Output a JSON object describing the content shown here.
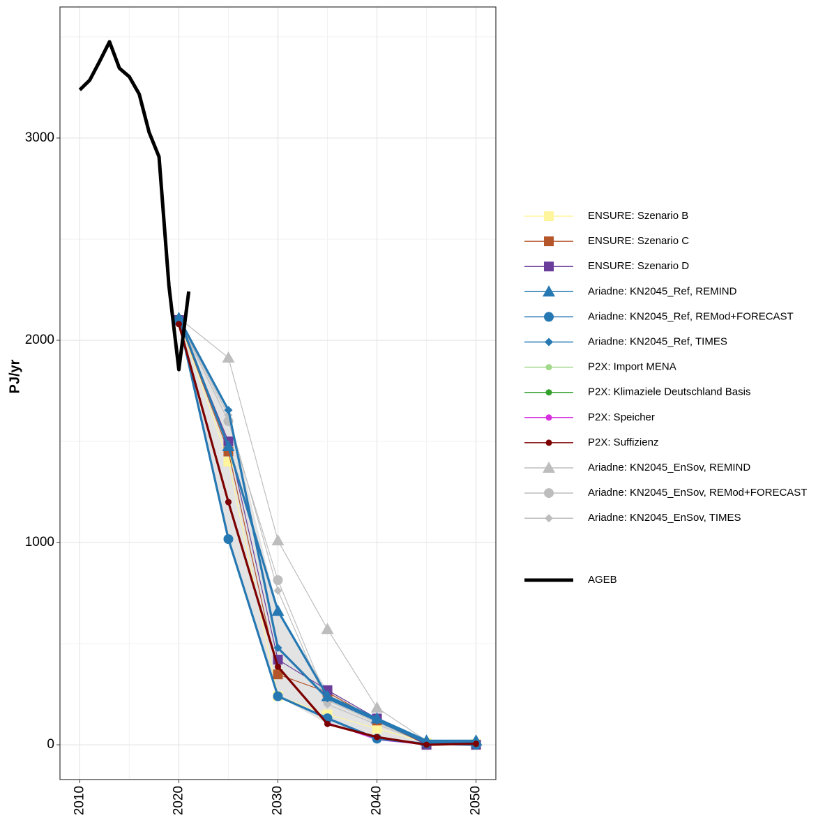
{
  "chart_data": {
    "type": "line",
    "y_label": "PJ/yr",
    "x": [
      2020,
      2025,
      2030,
      2035,
      2040,
      2045,
      2050
    ],
    "xlim": [
      2008,
      2052
    ],
    "xticks": [
      2010,
      2020,
      2030,
      2040,
      2050
    ],
    "x_minor_ticks": [
      2015,
      2025,
      2035,
      2045
    ],
    "ylim": [
      -172,
      3648
    ],
    "yticks": [
      0,
      1000,
      2000,
      3000
    ],
    "y_minor_ticks": [
      500,
      1500,
      2500,
      3500
    ],
    "grid": true,
    "series": [
      {
        "name": "ENSURE: Szenario B",
        "color": "#fff59d",
        "marker": "square",
        "values": [
          2100,
          1400,
          241,
          150,
          80,
          10,
          5
        ]
      },
      {
        "name": "ENSURE: Szenario C",
        "color": "#b5562a",
        "marker": "square",
        "values": [
          2100,
          1450,
          348,
          260,
          120,
          0,
          0
        ]
      },
      {
        "name": "ENSURE: Szenario D",
        "color": "#6a3d9a",
        "marker": "square",
        "values": [
          2100,
          1500,
          421,
          270,
          130,
          0,
          0
        ]
      },
      {
        "name": "Ariadne: KN2045_Ref, REMIND",
        "color": "#2678b2",
        "marker": "triangle",
        "values": [
          2110,
          1476,
          662,
          240,
          130,
          20,
          20
        ]
      },
      {
        "name": "Ariadne: KN2045_Ref, REMod+FORECAST",
        "color": "#2678b2",
        "marker": "circle",
        "values": [
          2100,
          1017,
          240,
          131,
          30,
          5,
          0
        ]
      },
      {
        "name": "Ariadne: KN2045_Ref, TIMES",
        "color": "#2678b2",
        "marker": "diamond",
        "values": [
          2110,
          1655,
          479,
          230,
          120,
          10,
          10
        ]
      },
      {
        "name": "P2X: Import MENA",
        "color": "#a1d98b",
        "marker": "dot",
        "values": [
          2080,
          1200,
          386,
          105,
          35,
          0,
          5
        ]
      },
      {
        "name": "P2X: Klimaziele Deutschland Basis",
        "color": "#33a02c",
        "marker": "dot",
        "values": [
          2080,
          1200,
          386,
          105,
          35,
          0,
          5
        ]
      },
      {
        "name": "P2X: Speicher",
        "color": "#d72ee0",
        "marker": "dot",
        "values": [
          2080,
          1200,
          386,
          110,
          25,
          0,
          5
        ]
      },
      {
        "name": "P2X: Suffizienz",
        "color": "#7d0000",
        "marker": "dot",
        "values": [
          2080,
          1200,
          386,
          103,
          38,
          0,
          5
        ]
      },
      {
        "name": "Ariadne: KN2045_EnSov, REMIND",
        "color": "#bdbdbd",
        "marker": "triangle",
        "values": [
          2110,
          1914,
          1010,
          572,
          183,
          20,
          20
        ]
      },
      {
        "name": "Ariadne: KN2045_EnSov, REMod+FORECAST",
        "color": "#bdbdbd",
        "marker": "circle",
        "values": [
          2100,
          1600,
          814,
          220,
          110,
          10,
          0
        ]
      },
      {
        "name": "Ariadne: KN2045_EnSov, TIMES",
        "color": "#bdbdbd",
        "marker": "diamond",
        "values": [
          2100,
          1630,
          762,
          200,
          100,
          10,
          10
        ]
      }
    ],
    "reference": {
      "name": "AGEB",
      "color": "#000000",
      "x": [
        2010,
        2011,
        2012,
        2013,
        2014,
        2015,
        2016,
        2017,
        2018,
        2019,
        2020,
        2021
      ],
      "values": [
        3238,
        3286,
        3379,
        3476,
        3345,
        3303,
        3217,
        3028,
        2907,
        2269,
        1855,
        2241
      ]
    }
  }
}
